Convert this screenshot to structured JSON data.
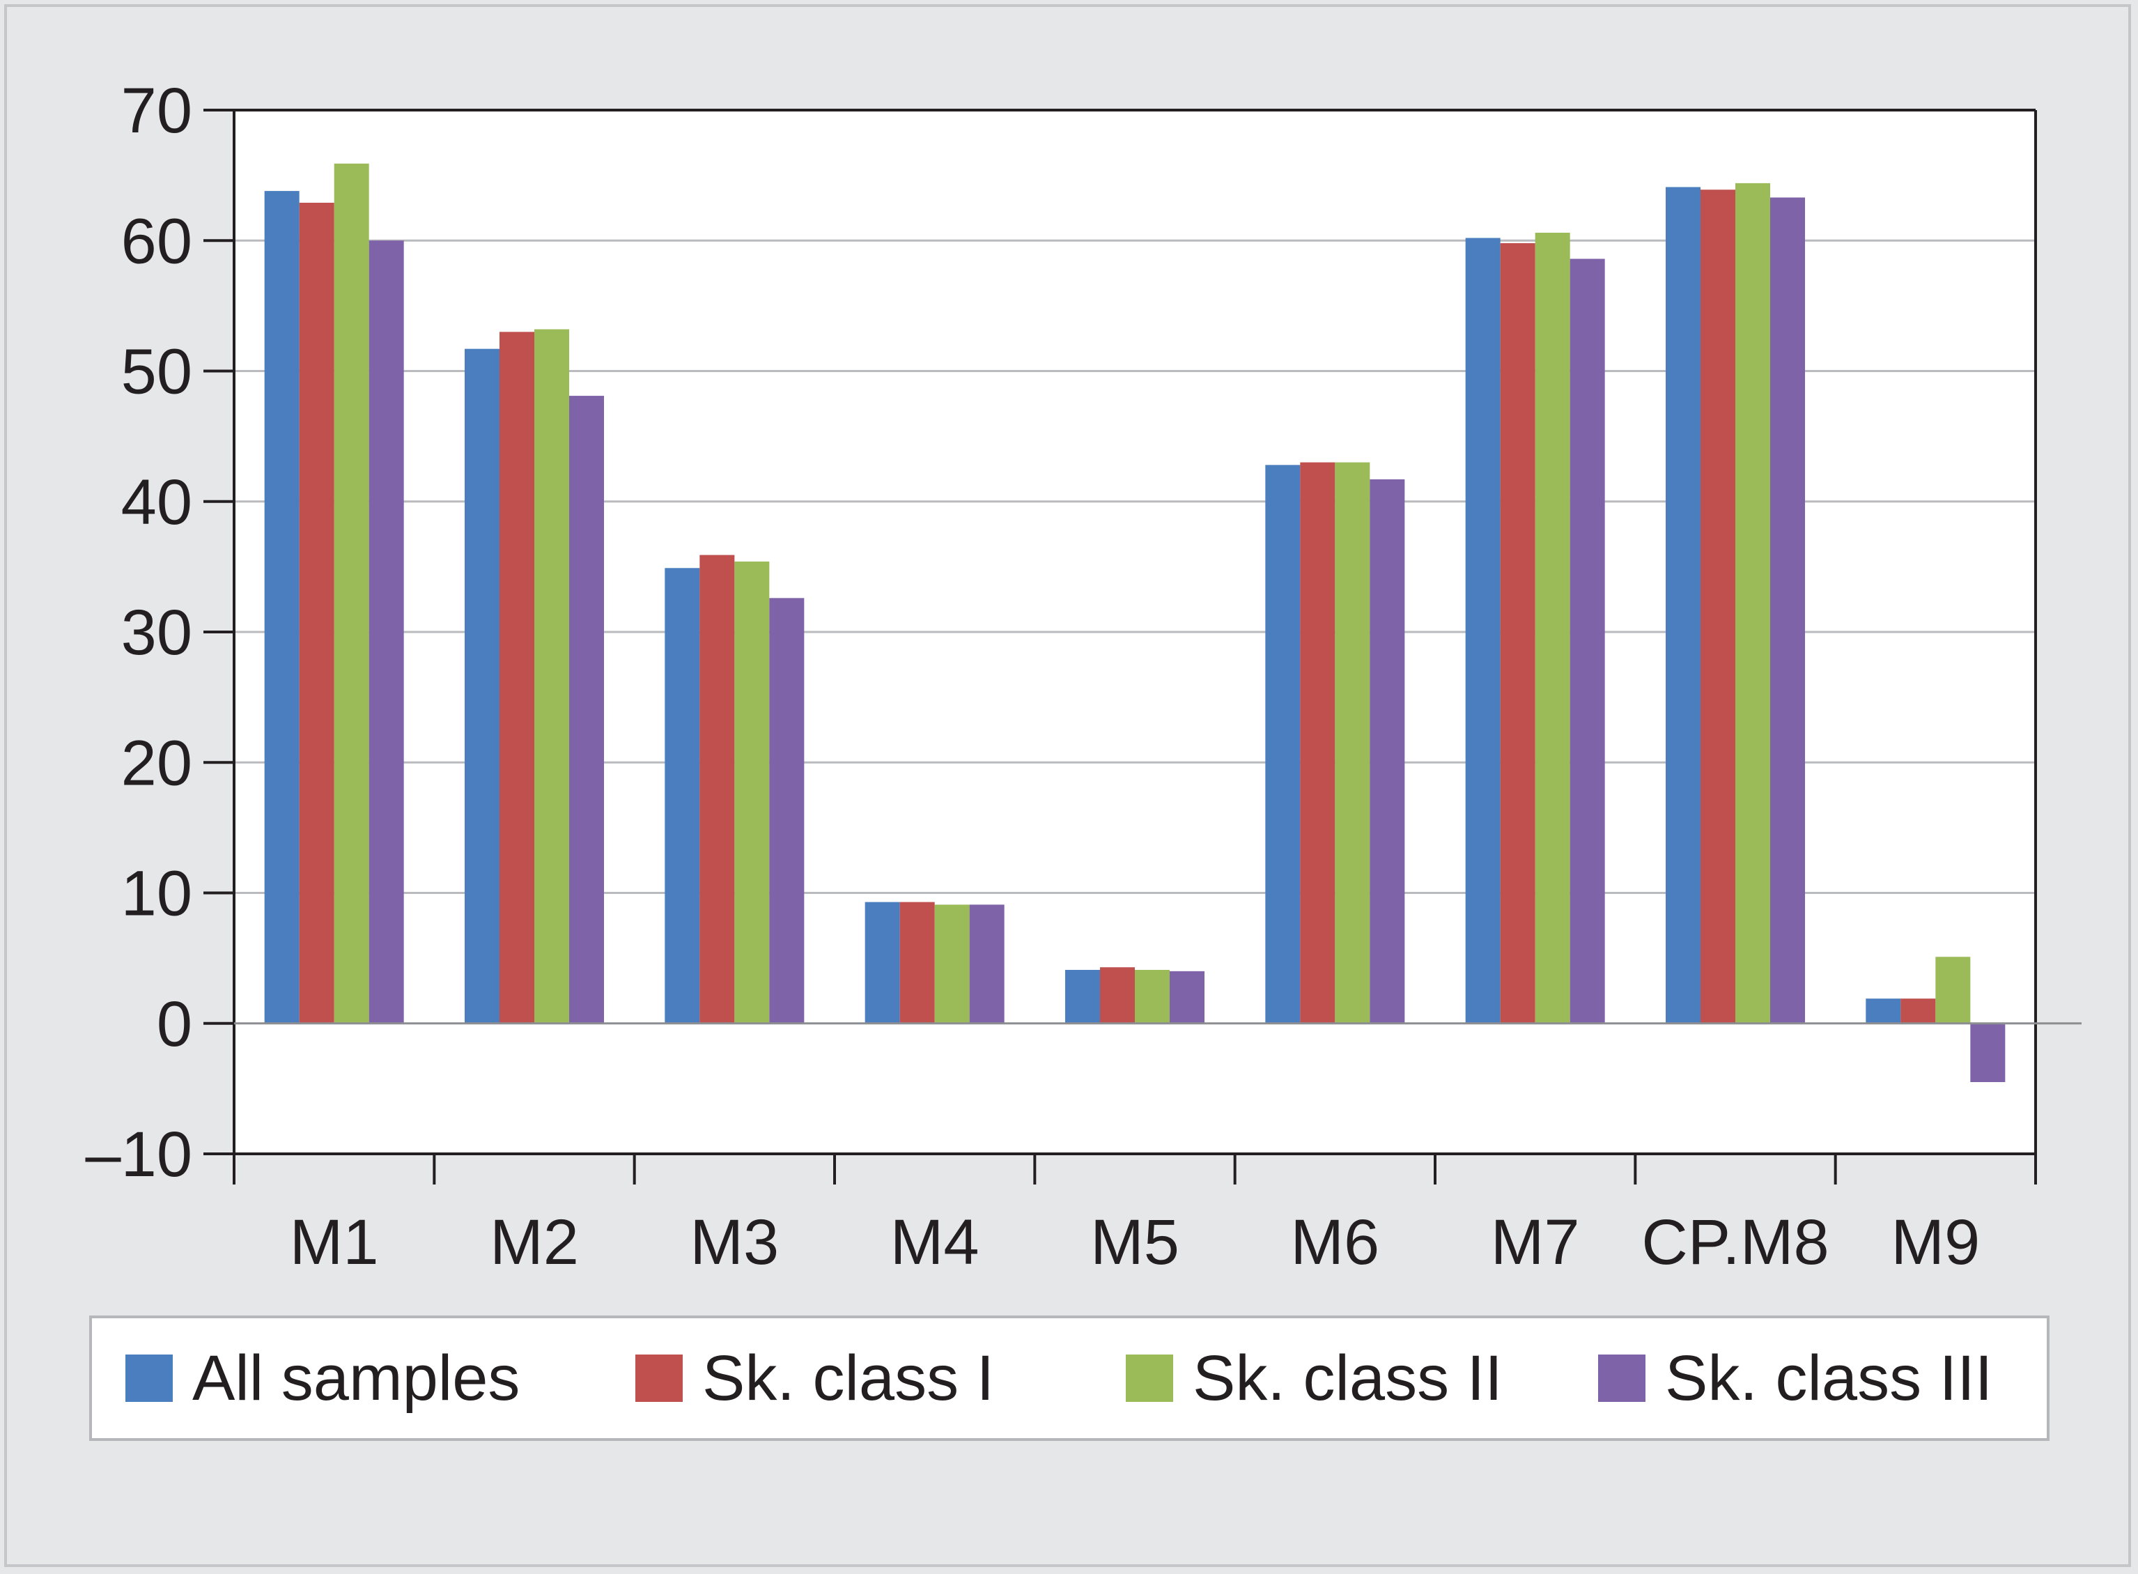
{
  "chart_data": {
    "type": "bar",
    "title": "",
    "xlabel": "",
    "ylabel": "",
    "categories": [
      "M1",
      "M2",
      "M3",
      "M4",
      "M5",
      "M6",
      "M7",
      "CP.M8",
      "M9"
    ],
    "series": [
      {
        "name": "All samples",
        "color": "#4a7ebf",
        "values": [
          63.8,
          51.7,
          34.9,
          9.3,
          4.1,
          42.8,
          60.2,
          64.1,
          1.9
        ]
      },
      {
        "name": "Sk. class I",
        "color": "#c0504d",
        "values": [
          62.9,
          53.0,
          35.9,
          9.3,
          4.3,
          43.0,
          59.8,
          63.9,
          1.9
        ]
      },
      {
        "name": "Sk. class II",
        "color": "#9bbb59",
        "values": [
          65.9,
          53.2,
          35.4,
          9.1,
          4.1,
          43.0,
          60.6,
          64.4,
          5.1
        ]
      },
      {
        "name": "Sk. class III",
        "color": "#7f63a8",
        "values": [
          60.0,
          48.1,
          32.6,
          9.1,
          4.0,
          41.7,
          58.6,
          63.3,
          -4.5
        ]
      }
    ],
    "ylim": [
      -10,
      70
    ],
    "yticks": [
      -10,
      0,
      10,
      20,
      30,
      40,
      50,
      60,
      70
    ],
    "ytick_labels": [
      "–10",
      "0",
      "10",
      "20",
      "30",
      "40",
      "50",
      "60",
      "70"
    ],
    "grid": true,
    "legend_position": "bottom"
  }
}
